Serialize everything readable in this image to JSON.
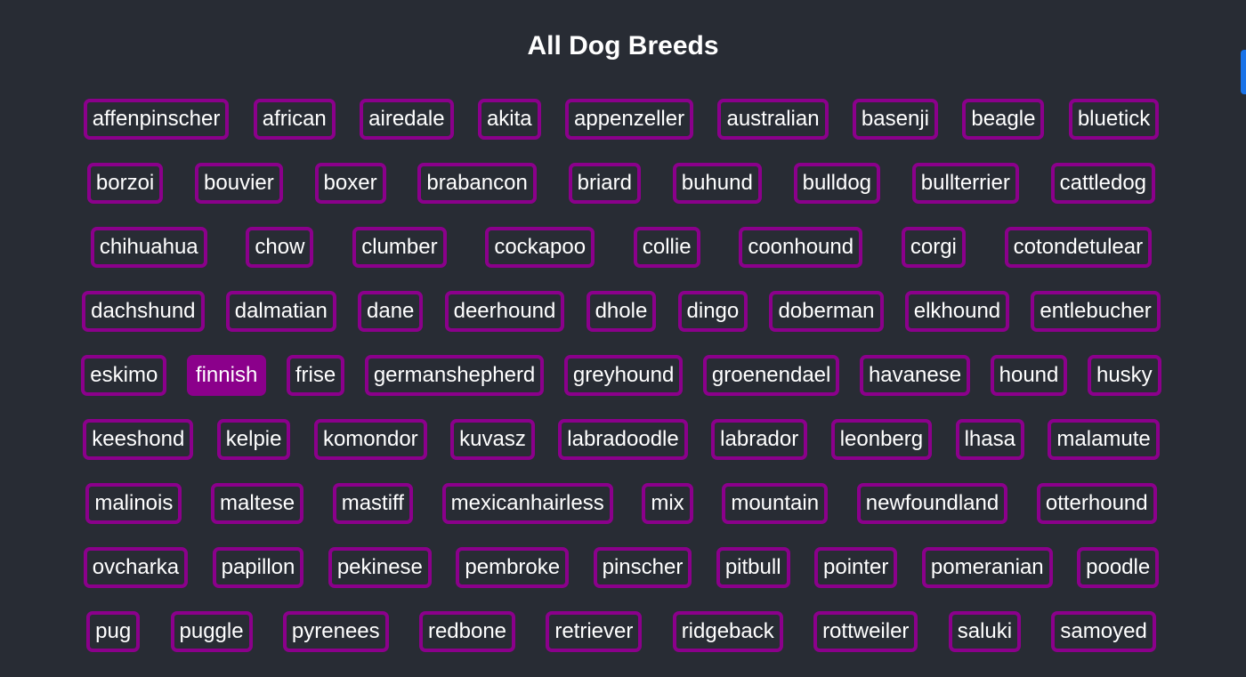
{
  "page": {
    "title": "All Dog Breeds"
  },
  "theme": {
    "background": "#282c34",
    "accent": "#8b008b",
    "text": "#ffffff",
    "side_tab": "#1a73e8"
  },
  "selected_breed": "finnish",
  "rows": [
    [
      "affenpinscher",
      "african",
      "airedale",
      "akita",
      "appenzeller",
      "australian",
      "basenji",
      "beagle",
      "bluetick"
    ],
    [
      "borzoi",
      "bouvier",
      "boxer",
      "brabancon",
      "briard",
      "buhund",
      "bulldog",
      "bullterrier",
      "cattledog"
    ],
    [
      "chihuahua",
      "chow",
      "clumber",
      "cockapoo",
      "collie",
      "coonhound",
      "corgi",
      "cotondetulear"
    ],
    [
      "dachshund",
      "dalmatian",
      "dane",
      "deerhound",
      "dhole",
      "dingo",
      "doberman",
      "elkhound",
      "entlebucher"
    ],
    [
      "eskimo",
      "finnish",
      "frise",
      "germanshepherd",
      "greyhound",
      "groenendael",
      "havanese",
      "hound",
      "husky"
    ],
    [
      "keeshond",
      "kelpie",
      "komondor",
      "kuvasz",
      "labradoodle",
      "labrador",
      "leonberg",
      "lhasa",
      "malamute"
    ],
    [
      "malinois",
      "maltese",
      "mastiff",
      "mexicanhairless",
      "mix",
      "mountain",
      "newfoundland",
      "otterhound"
    ],
    [
      "ovcharka",
      "papillon",
      "pekinese",
      "pembroke",
      "pinscher",
      "pitbull",
      "pointer",
      "pomeranian",
      "poodle"
    ],
    [
      "pug",
      "puggle",
      "pyrenees",
      "redbone",
      "retriever",
      "ridgeback",
      "rottweiler",
      "saluki",
      "samoyed"
    ]
  ]
}
